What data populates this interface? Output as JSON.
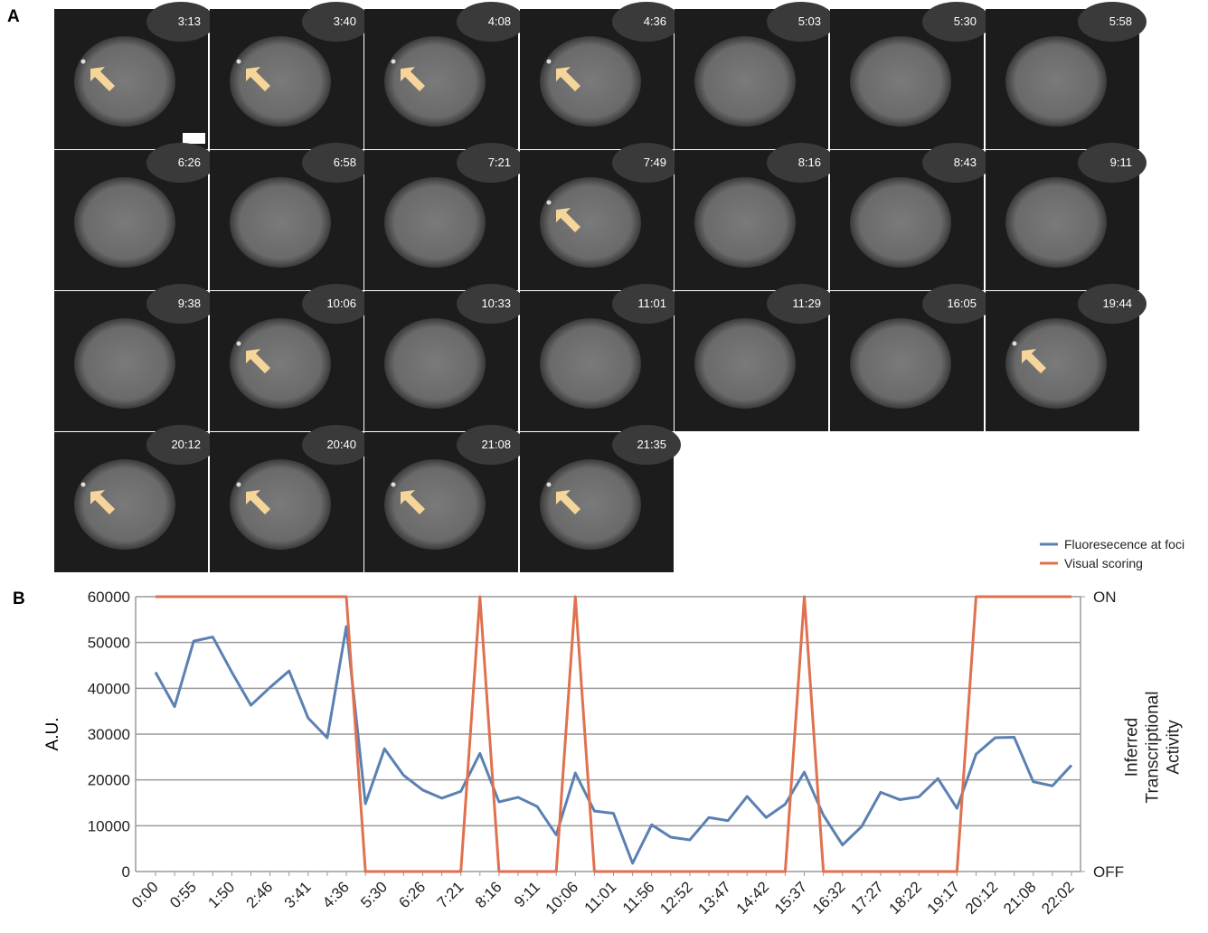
{
  "panel_a": {
    "label": "A",
    "frames": [
      {
        "time": "3:13"
      },
      {
        "time": "3:40"
      },
      {
        "time": "4:08"
      },
      {
        "time": "4:36"
      },
      {
        "time": "5:03"
      },
      {
        "time": "5:30"
      },
      {
        "time": "5:58"
      },
      {
        "time": "6:26"
      },
      {
        "time": "6:58"
      },
      {
        "time": "7:21"
      },
      {
        "time": "7:49"
      },
      {
        "time": "8:16"
      },
      {
        "time": "8:43"
      },
      {
        "time": "9:11"
      },
      {
        "time": "9:38"
      },
      {
        "time": "10:06"
      },
      {
        "time": "10:33"
      },
      {
        "time": "11:01"
      },
      {
        "time": "11:29"
      },
      {
        "time": "16:05"
      },
      {
        "time": "19:44"
      },
      {
        "time": "20:12"
      },
      {
        "time": "20:40"
      },
      {
        "time": "21:08"
      },
      {
        "time": "21:35"
      }
    ]
  },
  "chart_data": {
    "type": "line",
    "panel_label": "B",
    "ylabel": "A.U.",
    "y2label": "Inferred Transcriptional Activity",
    "categories": [
      "0:00",
      null,
      "0:55",
      null,
      "1:50",
      null,
      "2:46",
      null,
      "3:41",
      null,
      "4:36",
      null,
      "5:30",
      null,
      "6:26",
      null,
      "7:21",
      null,
      "8:16",
      null,
      "9:11",
      null,
      "10:06",
      null,
      "11:01",
      null,
      "11:56",
      null,
      "12:52",
      null,
      "13:47",
      null,
      "14:42",
      null,
      "15:37",
      null,
      "16:32",
      null,
      "17:27",
      null,
      "18:22",
      null,
      "19:17",
      null,
      "20:12",
      null,
      "21:08",
      null,
      "22:02"
    ],
    "series": [
      {
        "name": "Fluoresecence at foci",
        "color": "#5b80b2",
        "values": [
          43500,
          36000,
          50300,
          51200,
          43500,
          36300,
          40200,
          43800,
          33500,
          29200,
          53500,
          14800,
          26800,
          21000,
          17800,
          16000,
          17500,
          25800,
          15200,
          16200,
          14200,
          8000,
          21500,
          13200,
          12700,
          1800,
          10200,
          7500,
          6900,
          11800,
          11100,
          16400,
          11800,
          14700,
          21700,
          12300,
          5800,
          9800,
          17300,
          15700,
          16300,
          20300,
          13800,
          25600,
          29200,
          29300,
          19600,
          18700,
          23200
        ]
      },
      {
        "name": "Visual scoring",
        "color": "#e0714f",
        "axis": "y2",
        "values": [
          1,
          1,
          1,
          1,
          1,
          1,
          1,
          1,
          1,
          1,
          1,
          0,
          0,
          0,
          0,
          0,
          0,
          1,
          0,
          0,
          0,
          0,
          1,
          0,
          0,
          0,
          0,
          0,
          0,
          0,
          0,
          0,
          0,
          0,
          1,
          0,
          0,
          0,
          0,
          0,
          0,
          0,
          0,
          1,
          1,
          1,
          1,
          1,
          1
        ]
      }
    ],
    "ylim": [
      0,
      60000
    ],
    "yticks": [
      0,
      10000,
      20000,
      30000,
      40000,
      50000,
      60000
    ],
    "y2lim": [
      0,
      1
    ],
    "y2ticks": [
      {
        "value": 0,
        "label": "OFF"
      },
      {
        "value": 1,
        "label": "ON"
      }
    ],
    "grid": true,
    "legend": "top-right"
  }
}
